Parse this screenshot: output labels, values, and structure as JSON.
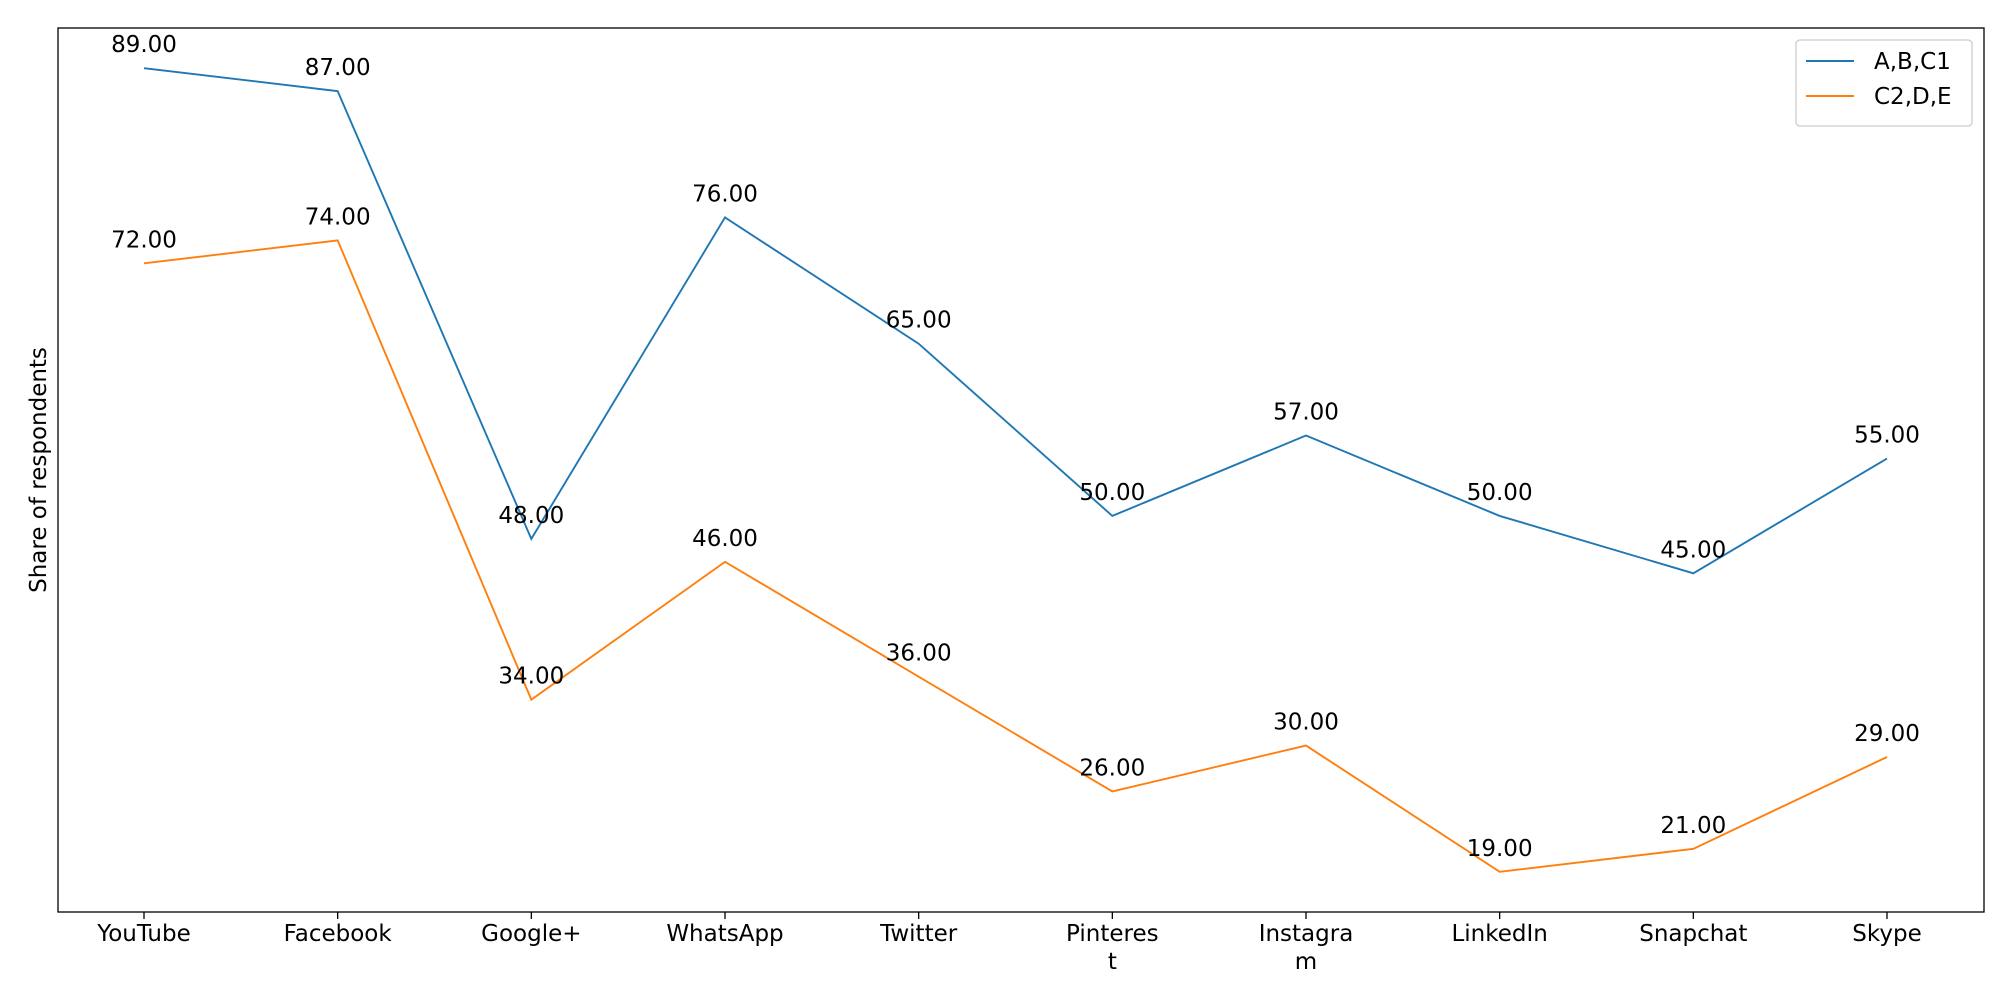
{
  "chart_data": {
    "type": "line",
    "title": "",
    "xlabel": "",
    "ylabel": "Share of respondents",
    "categories": [
      "YouTube",
      "Facebook",
      "Google+",
      "WhatsApp",
      "Twitter",
      "Pinterest",
      "Instagram",
      "LinkedIn",
      "Snapchat",
      "Skype"
    ],
    "category_lines": [
      [
        "YouTube"
      ],
      [
        "Facebook"
      ],
      [
        "Google+"
      ],
      [
        "WhatsApp"
      ],
      [
        "Twitter"
      ],
      [
        "Pinteres",
        "t"
      ],
      [
        "Instagra",
        "m"
      ],
      [
        "LinkedIn"
      ],
      [
        "Snapchat"
      ],
      [
        "Skype"
      ]
    ],
    "series": [
      {
        "name": "A,B,C1",
        "color": "#1f77b4",
        "values": [
          89,
          87,
          48,
          76,
          65,
          50,
          57,
          50,
          45,
          55
        ]
      },
      {
        "name": "C2,D,E",
        "color": "#ff7f0e",
        "values": [
          72,
          74,
          34,
          46,
          36,
          26,
          30,
          19,
          21,
          29
        ]
      }
    ],
    "value_format_decimals": 2,
    "ylim": [
      15.5,
      92.5
    ],
    "grid": false,
    "legend_position": "top-right"
  }
}
